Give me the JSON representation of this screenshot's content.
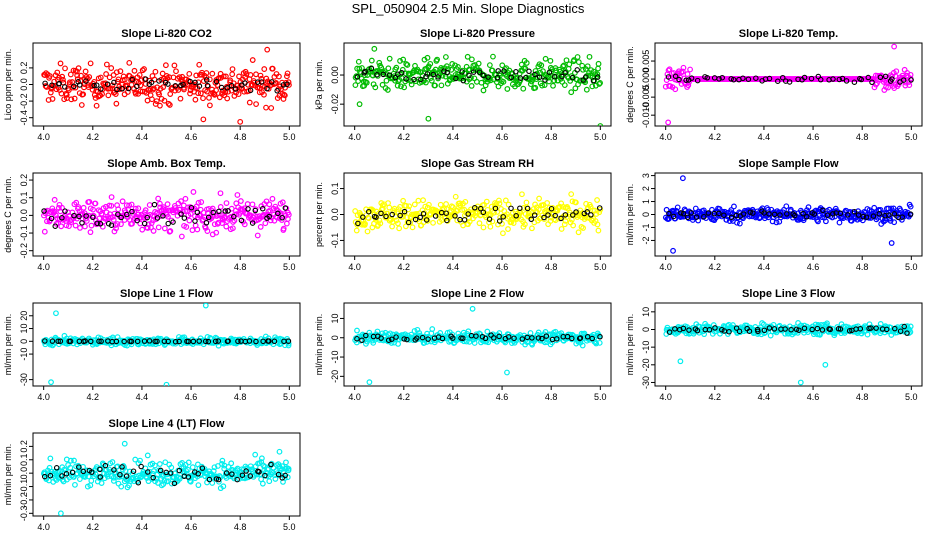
{
  "figure": {
    "title": "SPL_050904  2.5 Min. Slope Diagnostics"
  },
  "chart_data": [
    {
      "type": "scatter",
      "title": "Slope Li-820 CO2",
      "xlabel": "",
      "ylabel": "Lico ppm per min.",
      "xlim": [
        4.0,
        5.0
      ],
      "ylim": [
        -0.5,
        0.5
      ],
      "xticks": [
        "4.0",
        "4.2",
        "4.4",
        "4.6",
        "4.8",
        "5.0"
      ],
      "yticks": [
        "-0.4",
        "-0.2",
        "0.0",
        "0.2"
      ],
      "series": [
        {
          "values": {
            "spread": 0.22,
            "extremes": [
              [
                4.65,
                -0.42
              ],
              [
                4.91,
                0.42
              ],
              [
                4.8,
                -0.45
              ]
            ]
          }
        },
        {
          "values": {
            "spread": 0.07
          }
        }
      ],
      "colors": [
        "#ff0000",
        "#000000"
      ]
    },
    {
      "type": "scatter",
      "title": "Slope Li-820 Pressure",
      "xlabel": "",
      "ylabel": "kPa per min.",
      "xlim": [
        4.0,
        5.0
      ],
      "ylim": [
        -0.035,
        0.022
      ],
      "xticks": [
        "4.0",
        "4.2",
        "4.4",
        "4.6",
        "4.8",
        "5.0"
      ],
      "yticks": [
        "-0.02",
        "0.00"
      ],
      "series": [
        {
          "values": {
            "spread": 0.01,
            "extremes": [
              [
                4.02,
                -0.02
              ],
              [
                4.3,
                -0.03
              ],
              [
                5.0,
                -0.035
              ],
              [
                4.08,
                0.018
              ]
            ]
          }
        },
        {
          "values": {
            "spread": 0.004
          }
        }
      ],
      "colors": [
        "#00bb00",
        "#000000"
      ]
    },
    {
      "type": "scatter",
      "title": "Slope Li-820 Temp.",
      "xlabel": "",
      "ylabel": "degrees C per min.",
      "xlim": [
        4.0,
        5.0
      ],
      "ylim": [
        -0.013,
        0.01
      ],
      "xticks": [
        "4.0",
        "4.2",
        "4.4",
        "4.6",
        "4.8",
        "5.0"
      ],
      "yticks": [
        "-0.010",
        "-0.005",
        "0.000",
        "0.005"
      ],
      "series": [
        {
          "values": {
            "spread": 0.003,
            "active": [
              [
                4.0,
                4.1
              ],
              [
                4.85,
                5.0
              ]
            ],
            "extremes": [
              [
                4.01,
                -0.012
              ],
              [
                4.93,
                0.009
              ]
            ]
          }
        },
        {
          "values": {
            "spread": 0.001
          }
        }
      ],
      "colors": [
        "#ff00ff",
        "#000000"
      ]
    },
    {
      "type": "scatter",
      "title": "Slope Amb. Box Temp.",
      "xlabel": "",
      "ylabel": "degrees C per min.",
      "xlim": [
        4.0,
        5.0
      ],
      "ylim": [
        -0.23,
        0.24
      ],
      "xticks": [
        "4.0",
        "4.2",
        "4.4",
        "4.6",
        "4.8",
        "5.0"
      ],
      "yticks": [
        "-0.2",
        "-0.1",
        "0.0",
        "0.1",
        "0.2"
      ],
      "series": [
        {
          "values": {
            "spread": 0.09
          }
        },
        {
          "values": {
            "spread": 0.05
          }
        }
      ],
      "colors": [
        "#ff00ff",
        "#000000"
      ]
    },
    {
      "type": "scatter",
      "title": "Slope Gas Stream RH",
      "xlabel": "",
      "ylabel": "percent per min.",
      "xlim": [
        4.0,
        5.0
      ],
      "ylim": [
        -0.16,
        0.16
      ],
      "xticks": [
        "4.0",
        "4.2",
        "4.4",
        "4.6",
        "4.8",
        "5.0"
      ],
      "yticks": [
        "-0.1",
        "0.0",
        "0.1"
      ],
      "series": [
        {
          "values": {
            "spread": 0.055
          }
        },
        {
          "values": {
            "spread": 0.03
          }
        }
      ],
      "colors": [
        "#ffff00",
        "#000000"
      ]
    },
    {
      "type": "scatter",
      "title": "Slope Sample Flow",
      "xlabel": "",
      "ylabel": "ml/min per min.",
      "xlim": [
        4.0,
        5.0
      ],
      "ylim": [
        -3.2,
        3.2
      ],
      "xticks": [
        "4.0",
        "4.2",
        "4.4",
        "4.6",
        "4.8",
        "5.0"
      ],
      "yticks": [
        "-2",
        "-1",
        "0",
        "1",
        "2",
        "3"
      ],
      "series": [
        {
          "values": {
            "spread": 0.55,
            "extremes": [
              [
                4.07,
                2.8
              ],
              [
                4.03,
                -2.8
              ],
              [
                4.92,
                -2.2
              ]
            ]
          }
        },
        {
          "values": {
            "spread": 0.25
          }
        }
      ],
      "colors": [
        "#0000ff",
        "#000000"
      ]
    },
    {
      "type": "scatter",
      "title": "Slope Line 1 Flow",
      "xlabel": "",
      "ylabel": "ml/min per min.",
      "xlim": [
        4.0,
        5.0
      ],
      "ylim": [
        -35,
        30
      ],
      "xticks": [
        "4.0",
        "4.2",
        "4.4",
        "4.6",
        "4.8",
        "5.0"
      ],
      "yticks": [
        "-30",
        "-10",
        "0",
        "10",
        "20"
      ],
      "series": [
        {
          "values": {
            "spread": 3,
            "extremes": [
              [
                4.03,
                -32
              ],
              [
                4.5,
                -34
              ],
              [
                4.66,
                28
              ],
              [
                4.05,
                22
              ]
            ]
          }
        },
        {
          "values": {
            "spread": 0.3
          }
        }
      ],
      "colors": [
        "#00eeee",
        "#000000"
      ]
    },
    {
      "type": "scatter",
      "title": "Slope Line 2 Flow",
      "xlabel": "",
      "ylabel": "ml/min per min.",
      "xlim": [
        4.0,
        5.0
      ],
      "ylim": [
        -25,
        18
      ],
      "xticks": [
        "4.0",
        "4.2",
        "4.4",
        "4.6",
        "4.8",
        "5.0"
      ],
      "yticks": [
        "-20",
        "-10",
        "0",
        "10"
      ],
      "series": [
        {
          "values": {
            "spread": 3,
            "extremes": [
              [
                4.06,
                -23
              ],
              [
                4.62,
                -18
              ],
              [
                4.48,
                15
              ]
            ]
          }
        },
        {
          "values": {
            "spread": 1.2
          }
        }
      ],
      "colors": [
        "#00eeee",
        "#000000"
      ]
    },
    {
      "type": "scatter",
      "title": "Slope Line 3 Flow",
      "xlabel": "",
      "ylabel": "ml/min per min.",
      "xlim": [
        4.0,
        5.0
      ],
      "ylim": [
        -32,
        15
      ],
      "xticks": [
        "4.0",
        "4.2",
        "4.4",
        "4.6",
        "4.8",
        "5.0"
      ],
      "yticks": [
        "-30",
        "-20",
        "-10",
        "0",
        "10"
      ],
      "series": [
        {
          "values": {
            "spread": 3,
            "extremes": [
              [
                4.06,
                -18
              ],
              [
                4.55,
                -30
              ],
              [
                4.65,
                -20
              ]
            ]
          }
        },
        {
          "values": {
            "spread": 1.5
          }
        }
      ],
      "colors": [
        "#00eeee",
        "#000000"
      ]
    },
    {
      "type": "scatter",
      "title": "Slope Line 4 (LT) Flow",
      "xlabel": "",
      "ylabel": "ml/min per min.",
      "xlim": [
        4.0,
        5.0
      ],
      "ylim": [
        -0.32,
        0.3
      ],
      "xticks": [
        "4.0",
        "4.2",
        "4.4",
        "4.6",
        "4.8",
        "5.0"
      ],
      "yticks": [
        "-0.3",
        "-0.2",
        "-0.1",
        "0.0",
        "0.1",
        "0.2"
      ],
      "series": [
        {
          "values": {
            "spread": 0.09,
            "extremes": [
              [
                4.07,
                -0.3
              ],
              [
                4.33,
                0.22
              ],
              [
                4.96,
                0.16
              ]
            ]
          }
        },
        {
          "values": {
            "spread": 0.06
          }
        }
      ],
      "colors": [
        "#00eeee",
        "#000000"
      ]
    }
  ]
}
